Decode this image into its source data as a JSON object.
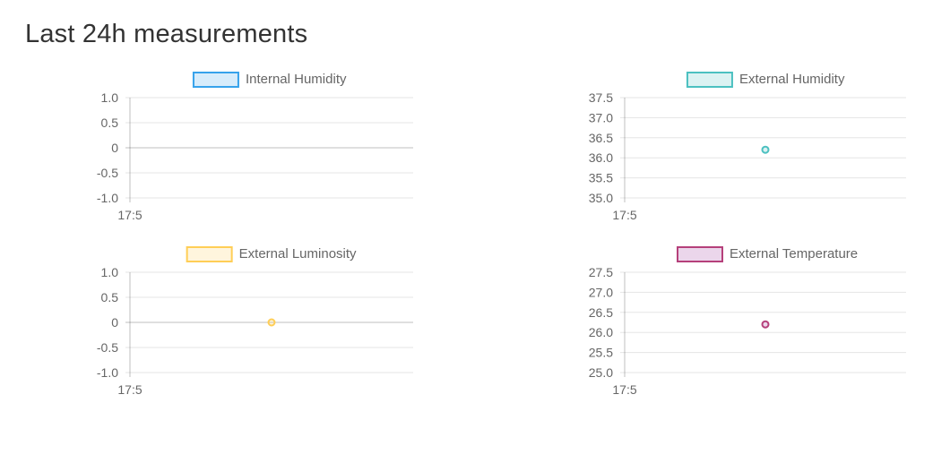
{
  "page": {
    "title": "Last 24h measurements"
  },
  "chart_data": [
    {
      "type": "line",
      "legend": "Internal Humidity",
      "legend_position": "top",
      "color": "#36a2eb",
      "fill": "rgba(54,162,235,0.2)",
      "x_ticks": [
        "17:5"
      ],
      "y_ticks": [
        "1.0",
        "0.5",
        "0",
        "-0.5",
        "-1.0"
      ],
      "ylim": [
        -1.0,
        1.0
      ],
      "points": [],
      "grid": true
    },
    {
      "type": "line",
      "legend": "External Humidity",
      "legend_position": "top",
      "color": "#4bc0c0",
      "fill": "rgba(75,192,192,0.2)",
      "x_ticks": [
        "17:5"
      ],
      "y_ticks": [
        "37.5",
        "37.0",
        "36.5",
        "36.0",
        "35.5",
        "35.0"
      ],
      "ylim": [
        35.0,
        37.5
      ],
      "points": [
        {
          "x": "17:5",
          "y": 36.2
        }
      ],
      "grid": true
    },
    {
      "type": "line",
      "legend": "External Luminosity",
      "legend_position": "top",
      "color": "#ffce56",
      "fill": "rgba(255,206,86,0.2)",
      "x_ticks": [
        "17:5"
      ],
      "y_ticks": [
        "1.0",
        "0.5",
        "0",
        "-0.5",
        "-1.0"
      ],
      "ylim": [
        -1.0,
        1.0
      ],
      "points": [
        {
          "x": "17:5",
          "y": 0
        }
      ],
      "grid": true
    },
    {
      "type": "line",
      "legend": "External Temperature",
      "legend_position": "top",
      "color": "#b5407a",
      "fill": "rgba(153,51,153,0.2)",
      "x_ticks": [
        "17:5"
      ],
      "y_ticks": [
        "27.5",
        "27.0",
        "26.5",
        "26.0",
        "25.5",
        "25.0"
      ],
      "ylim": [
        25.0,
        27.5
      ],
      "points": [
        {
          "x": "17:5",
          "y": 26.2
        }
      ],
      "grid": true
    }
  ]
}
